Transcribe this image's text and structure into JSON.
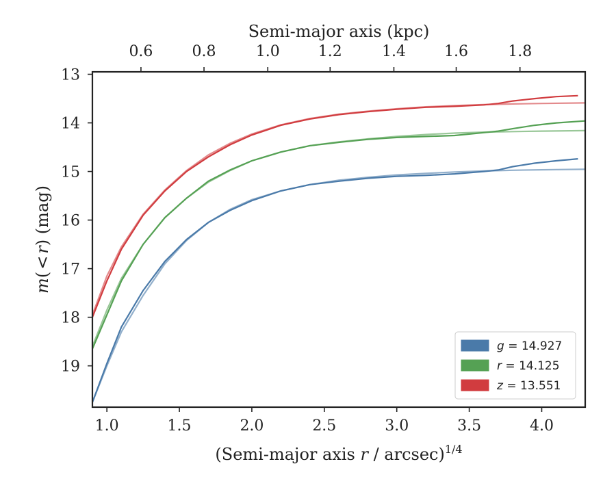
{
  "chart_data": {
    "type": "line",
    "xlabel_main": "(Semi-major axis ",
    "xlabel_var": "r",
    "xlabel_tail": " / arcsec)",
    "xlabel_exp": "1/4",
    "x2label": "Semi-major axis (kpc)",
    "ylabel_m": "m",
    "ylabel_mid": "(",
    "ylabel_lt": "<",
    "ylabel_r": "r",
    "ylabel_tail": ") (mag)",
    "xlim": [
      0.9,
      4.3
    ],
    "ylim": [
      19.85,
      12.95
    ],
    "y_inverted": true,
    "x_ticks": [
      1.0,
      1.5,
      2.0,
      2.5,
      3.0,
      3.5,
      4.0
    ],
    "x_tick_labels": [
      "1.0",
      "1.5",
      "2.0",
      "2.5",
      "3.0",
      "3.5",
      "4.0"
    ],
    "y_ticks": [
      13,
      14,
      15,
      16,
      17,
      18,
      19
    ],
    "y_tick_labels": [
      "13",
      "14",
      "15",
      "16",
      "17",
      "18",
      "19"
    ],
    "x2_ticks": [
      0.6,
      0.8,
      1.0,
      1.2,
      1.4,
      1.6,
      1.8
    ],
    "x2_tick_labels": [
      "0.6",
      "0.8",
      "1.0",
      "1.2",
      "1.4",
      "1.6",
      "1.8"
    ],
    "x2_tick_positions_x": [
      1.235,
      1.67,
      2.11,
      2.54,
      2.98,
      3.41,
      3.85
    ],
    "legend_placement": "lower-right",
    "grid": false,
    "series": [
      {
        "name": "g = 14.927",
        "band": "g",
        "mag": "14.927",
        "color": "#4a7aa9",
        "data": {
          "x": [
            0.9,
            1.0,
            1.1,
            1.25,
            1.4,
            1.55,
            1.7,
            1.85,
            2.0,
            2.2,
            2.4,
            2.6,
            2.8,
            3.0,
            3.2,
            3.4,
            3.6,
            3.7,
            3.8,
            3.95,
            4.1,
            4.25
          ],
          "y": [
            19.75,
            18.95,
            18.2,
            17.45,
            16.85,
            16.4,
            16.05,
            15.8,
            15.6,
            15.4,
            15.27,
            15.2,
            15.14,
            15.1,
            15.08,
            15.05,
            15.0,
            14.97,
            14.9,
            14.83,
            14.78,
            14.74
          ]
        },
        "model": {
          "x": [
            0.9,
            1.0,
            1.1,
            1.25,
            1.4,
            1.55,
            1.7,
            1.85,
            2.0,
            2.2,
            2.4,
            2.6,
            2.8,
            3.0,
            3.2,
            3.4,
            3.6,
            3.8,
            4.0,
            4.3
          ],
          "y": [
            19.75,
            19.0,
            18.3,
            17.55,
            16.9,
            16.42,
            16.05,
            15.78,
            15.58,
            15.4,
            15.27,
            15.18,
            15.12,
            15.07,
            15.04,
            15.01,
            14.99,
            14.975,
            14.965,
            14.955
          ]
        }
      },
      {
        "name": "r = 14.125",
        "band": "r",
        "mag": "14.125",
        "color": "#55a154",
        "data": {
          "x": [
            0.9,
            1.0,
            1.1,
            1.25,
            1.4,
            1.55,
            1.7,
            1.85,
            2.0,
            2.2,
            2.4,
            2.6,
            2.8,
            3.0,
            3.2,
            3.4,
            3.6,
            3.7,
            3.8,
            3.95,
            4.1,
            4.3
          ],
          "y": [
            18.65,
            17.95,
            17.25,
            16.5,
            15.95,
            15.55,
            15.2,
            14.97,
            14.78,
            14.6,
            14.47,
            14.4,
            14.34,
            14.3,
            14.28,
            14.26,
            14.2,
            14.17,
            14.12,
            14.05,
            14.0,
            13.96
          ]
        },
        "model": {
          "x": [
            0.9,
            1.0,
            1.1,
            1.25,
            1.4,
            1.55,
            1.7,
            1.85,
            2.0,
            2.2,
            2.4,
            2.6,
            2.8,
            3.0,
            3.2,
            3.4,
            3.6,
            3.8,
            4.0,
            4.3
          ],
          "y": [
            18.6,
            17.85,
            17.2,
            16.5,
            15.95,
            15.55,
            15.22,
            14.98,
            14.78,
            14.6,
            14.47,
            14.39,
            14.33,
            14.28,
            14.24,
            14.21,
            14.19,
            14.18,
            14.17,
            14.16
          ]
        }
      },
      {
        "name": "z = 13.551",
        "band": "z",
        "mag": "13.551",
        "color": "#d13c3f",
        "data": {
          "x": [
            0.9,
            1.0,
            1.1,
            1.25,
            1.4,
            1.55,
            1.7,
            1.85,
            2.0,
            2.2,
            2.4,
            2.6,
            2.8,
            3.0,
            3.2,
            3.4,
            3.6,
            3.7,
            3.8,
            3.95,
            4.1,
            4.25
          ],
          "y": [
            18.0,
            17.25,
            16.6,
            15.9,
            15.4,
            15.0,
            14.7,
            14.45,
            14.25,
            14.05,
            13.92,
            13.83,
            13.77,
            13.72,
            13.68,
            13.66,
            13.63,
            13.6,
            13.55,
            13.5,
            13.46,
            13.44
          ]
        },
        "model": {
          "x": [
            0.9,
            1.0,
            1.1,
            1.25,
            1.4,
            1.55,
            1.7,
            1.85,
            2.0,
            2.2,
            2.4,
            2.6,
            2.8,
            3.0,
            3.2,
            3.4,
            3.6,
            3.8,
            4.0,
            4.3
          ],
          "y": [
            17.95,
            17.15,
            16.55,
            15.88,
            15.38,
            14.98,
            14.66,
            14.42,
            14.23,
            14.04,
            13.91,
            13.82,
            13.76,
            13.71,
            13.67,
            13.645,
            13.625,
            13.61,
            13.6,
            13.59
          ]
        }
      }
    ]
  }
}
